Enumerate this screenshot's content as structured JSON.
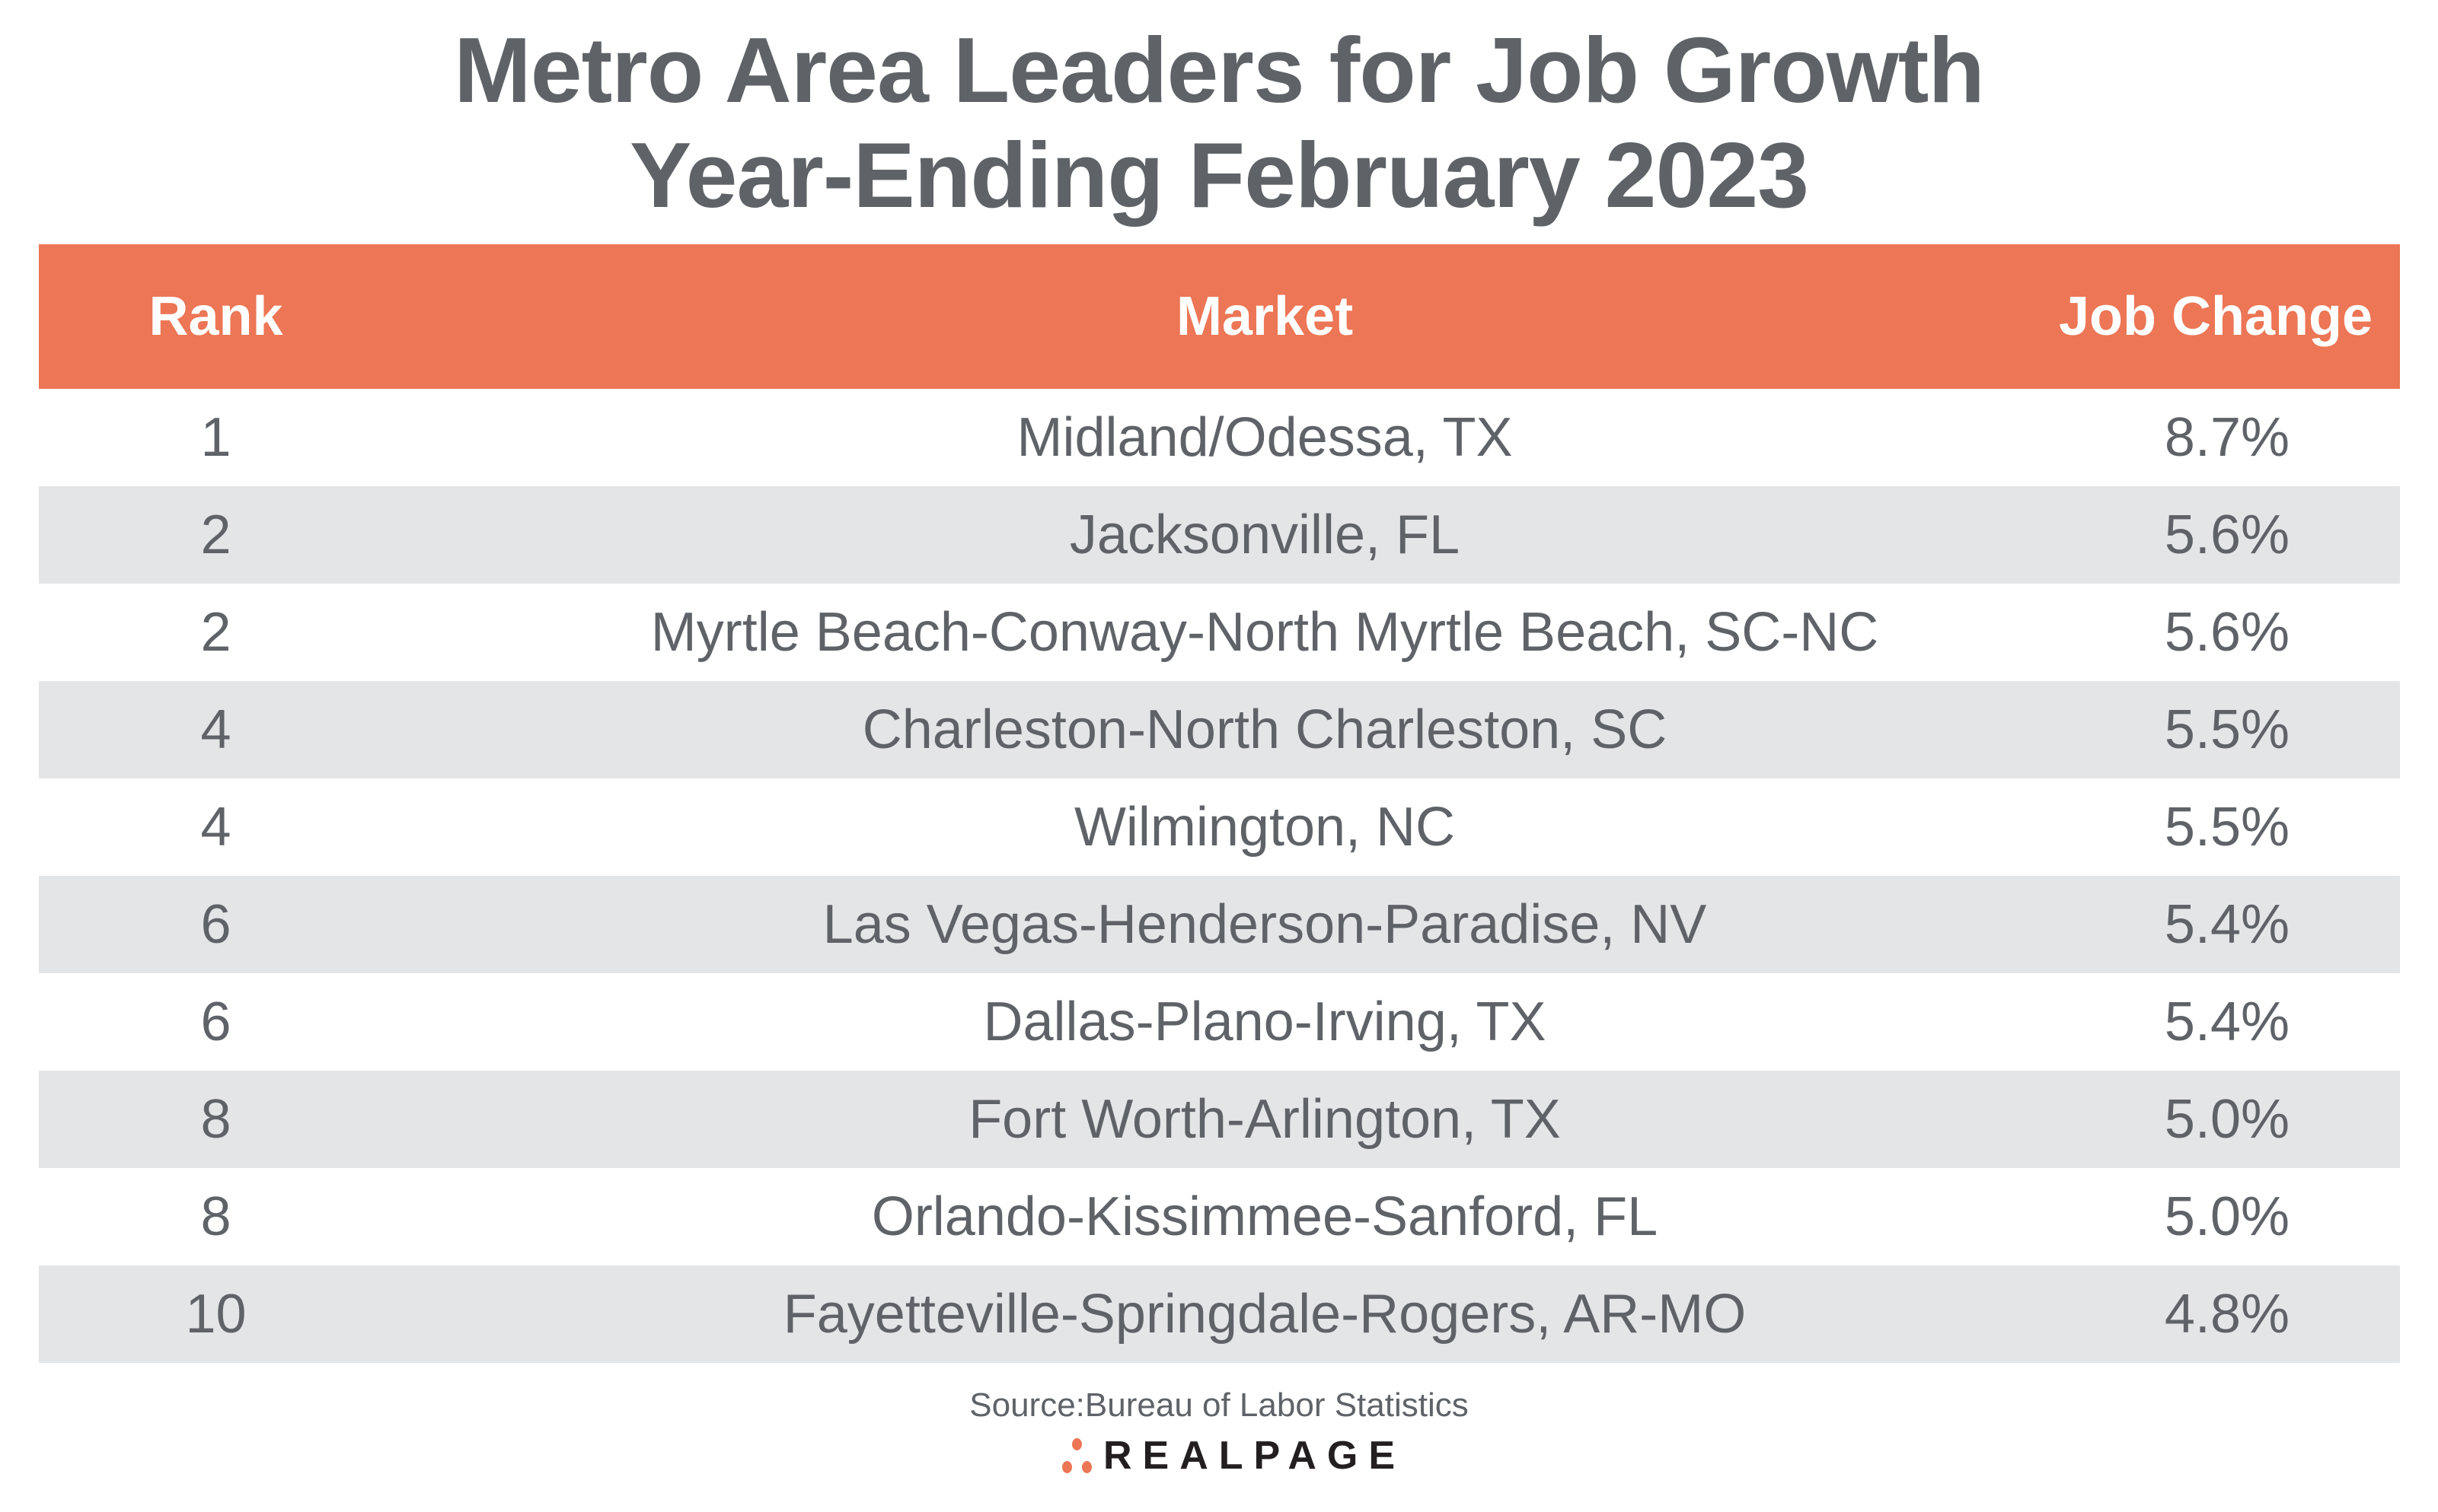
{
  "title": {
    "line1": "Metro Area Leaders for Job Growth",
    "line2": "Year-Ending February 2023"
  },
  "table": {
    "headers": {
      "rank": "Rank",
      "market": "Market",
      "job_change": "Job Change"
    },
    "header_color": "#ec7655",
    "stripe_color": "#e4e5e7",
    "rows": [
      {
        "rank": "1",
        "market": "Midland/Odessa, TX",
        "job_change": "8.7%"
      },
      {
        "rank": "2",
        "market": "Jacksonville, FL",
        "job_change": "5.6%"
      },
      {
        "rank": "2",
        "market": "Myrtle Beach-Conway-North Myrtle Beach, SC-NC",
        "job_change": "5.6%"
      },
      {
        "rank": "4",
        "market": "Charleston-North Charleston, SC",
        "job_change": "5.5%"
      },
      {
        "rank": "4",
        "market": "Wilmington, NC",
        "job_change": "5.5%"
      },
      {
        "rank": "6",
        "market": "Las Vegas-Henderson-Paradise, NV",
        "job_change": "5.4%"
      },
      {
        "rank": "6",
        "market": "Dallas-Plano-Irving, TX",
        "job_change": "5.4%"
      },
      {
        "rank": "8",
        "market": "Fort Worth-Arlington, TX",
        "job_change": "5.0%"
      },
      {
        "rank": "8",
        "market": "Orlando-Kissimmee-Sanford, FL",
        "job_change": "5.0%"
      },
      {
        "rank": "10",
        "market": "Fayetteville-Springdale-Rogers, AR-MO",
        "job_change": "4.8%"
      }
    ]
  },
  "source": "Source:Bureau of Labor Statistics",
  "logo": {
    "text": "REALPAGE",
    "icon": "three-dots-logo-icon"
  }
}
